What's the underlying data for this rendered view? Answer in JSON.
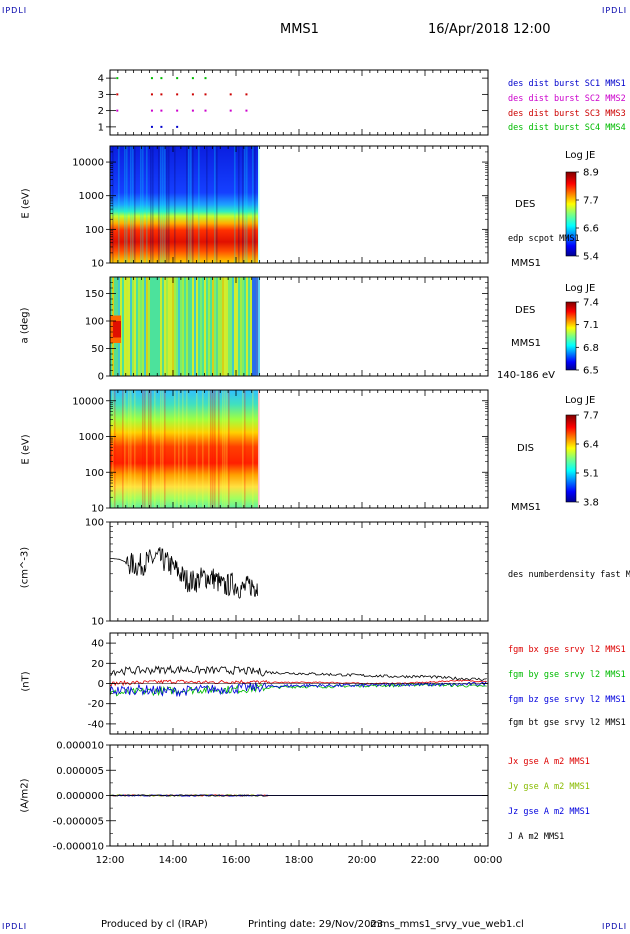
{
  "header": {
    "corner_tl": "IPDLI",
    "corner_tr": "IPDLI",
    "corner_bl": "IPDLI",
    "corner_br": "IPDLI",
    "title": "MMS1",
    "datetime": "16/Apr/2018 12:00"
  },
  "footer": {
    "produced": "Produced by cl (IRAP)",
    "printing": "Printing date: 29/Nov/2023",
    "file": "mms_mms1_srvy_vue_web1.cl"
  },
  "colors": {
    "mms1": "#0000cc",
    "mms2": "#cc00cc",
    "mms3": "#cc0000",
    "mms4": "#00bb00",
    "bx": "#dd0000",
    "by": "#00bb00",
    "bz": "#0000dd",
    "bt": "#000000"
  },
  "x_axis": {
    "ticks": [
      "12:00",
      "14:00",
      "16:00",
      "18:00",
      "20:00",
      "22:00",
      "00:00"
    ],
    "start_hour": 12,
    "end_hour": 24
  },
  "panels": {
    "burst": {
      "yticks": [
        "4",
        "3",
        "2",
        "1"
      ],
      "legend": [
        "des dist burst SC1 MMS1",
        "des dist burst SC2 MMS2",
        "des dist burst SC3 MMS3",
        "des dist burst SC4 MMS4"
      ]
    },
    "des_energy": {
      "ylabel": "E (eV)",
      "yticks": [
        "10000",
        "1000",
        "100",
        "10"
      ],
      "label": "DES",
      "overlay_label": "edp scpot MMS1",
      "sc": "MMS1",
      "cbar_title": "Log JE",
      "cbar_ticks": [
        "8.9",
        "7.7",
        "6.6",
        "5.4"
      ]
    },
    "des_pitch": {
      "ylabel": "a (deg)",
      "yticks": [
        "150",
        "100",
        "50",
        "0"
      ],
      "label": "DES",
      "sc": "MMS1",
      "range": "140-186 eV",
      "cbar_title": "Log JE",
      "cbar_ticks": [
        "7.4",
        "7.1",
        "6.8",
        "6.5"
      ]
    },
    "dis_energy": {
      "ylabel": "E (eV)",
      "yticks": [
        "10000",
        "1000",
        "100",
        "10"
      ],
      "label": "DIS",
      "sc": "MMS1",
      "cbar_title": "Log JE",
      "cbar_ticks": [
        "7.7",
        "6.4",
        "5.1",
        "3.8"
      ]
    },
    "density": {
      "ylabel": "(cm^-3)",
      "yticks": [
        "100",
        "10"
      ],
      "legend": "des numberdensity fast M"
    },
    "bfield": {
      "ylabel": "(nT)",
      "yticks": [
        "40",
        "20",
        "0",
        "-20",
        "-40"
      ],
      "legend": [
        "fgm bx gse srvy l2 MMS1",
        "fgm by gse srvy l2 MMS1",
        "fgm bz gse srvy l2 MMS1",
        "fgm bt gse srvy l2 MMS1"
      ]
    },
    "current": {
      "ylabel": "(A/m2)",
      "yticks": [
        "0.000010",
        "0.000005",
        "0.000000",
        "-0.000005",
        "-0.000010"
      ],
      "legend": [
        "Jx gse A m2 MMS1",
        "Jy gse A m2 MMS1",
        "Jz gse A m2 MMS1",
        "J A m2 MMS1"
      ]
    }
  },
  "chart_data": [
    {
      "type": "scatter",
      "title": "burst intervals",
      "ylim": [
        0.5,
        4.5
      ],
      "series": [
        {
          "name": "des dist burst SC1 MMS1",
          "y": 1,
          "x": [
            13.3,
            13.6,
            14.1
          ]
        },
        {
          "name": "des dist burst SC2 MMS2",
          "y": 2,
          "x": [
            12.2,
            13.3,
            13.6,
            14.1,
            14.6,
            15.0,
            15.8,
            16.3
          ]
        },
        {
          "name": "des dist burst SC3 MMS3",
          "y": 3,
          "x": [
            12.2,
            13.3,
            13.6,
            14.1,
            14.6,
            15.0,
            15.8,
            16.3
          ]
        },
        {
          "name": "des dist burst SC4 MMS4",
          "y": 4,
          "x": [
            12.2,
            13.3,
            13.6,
            14.1,
            14.6,
            15.0
          ]
        }
      ]
    },
    {
      "type": "heatmap",
      "title": "DES",
      "ylabel": "E (eV)",
      "yscale": "log",
      "ylim": [
        10,
        30000
      ],
      "x_range": [
        12.0,
        16.7
      ],
      "colorbar": {
        "title": "Log JE",
        "min": 5.4,
        "max": 8.9
      }
    },
    {
      "type": "heatmap",
      "title": "DES",
      "ylabel": "a (deg)",
      "ylim": [
        0,
        180
      ],
      "x_range": [
        12.0,
        16.7
      ],
      "colorbar": {
        "title": "Log JE",
        "min": 6.5,
        "max": 7.4
      }
    },
    {
      "type": "heatmap",
      "title": "DIS",
      "ylabel": "E (eV)",
      "yscale": "log",
      "ylim": [
        10,
        20000
      ],
      "x_range": [
        12.0,
        16.7
      ],
      "colorbar": {
        "title": "Log JE",
        "min": 3.8,
        "max": 7.7
      }
    },
    {
      "type": "line",
      "ylabel": "(cm^-3)",
      "yscale": "log",
      "ylim": [
        10,
        100
      ],
      "series": [
        {
          "name": "des numberdensity fast M",
          "x": [
            12.0,
            12.3,
            12.6,
            12.9,
            13.2,
            13.5,
            13.8,
            14.1,
            14.4,
            14.7,
            15.0,
            15.3,
            15.6,
            15.9,
            16.2,
            16.5,
            16.7
          ],
          "values": [
            43,
            42,
            38,
            36,
            40,
            44,
            39,
            33,
            26,
            25,
            28,
            27,
            22,
            24,
            21,
            23,
            22
          ]
        }
      ]
    },
    {
      "type": "line",
      "ylabel": "(nT)",
      "ylim": [
        -50,
        50
      ],
      "x": [
        12.0,
        13.0,
        14.0,
        15.0,
        16.0,
        17.0,
        18.0,
        19.0,
        20.0,
        21.0,
        22.0,
        23.0,
        24.0
      ],
      "series": [
        {
          "name": "fgm bx gse srvy l2 MMS1",
          "values": [
            0,
            1,
            2,
            1,
            2,
            1,
            1,
            1,
            0,
            0,
            1,
            3,
            2
          ]
        },
        {
          "name": "fgm by gse srvy l2 MMS1",
          "values": [
            -10,
            -8,
            -7,
            -6,
            -6,
            -4,
            -3,
            -3,
            -2,
            -2,
            -1,
            -2,
            -3
          ]
        },
        {
          "name": "fgm bz gse srvy l2 MMS1",
          "values": [
            -7,
            -6,
            -8,
            -6,
            -5,
            -3,
            -2,
            -2,
            -2,
            -1,
            -1,
            -1,
            0
          ]
        },
        {
          "name": "fgm bt gse srvy l2 MMS1",
          "values": [
            12,
            13,
            14,
            13,
            13,
            11,
            10,
            9,
            8,
            7,
            7,
            5,
            4
          ]
        }
      ]
    },
    {
      "type": "line",
      "ylabel": "(A/m2)",
      "ylim": [
        -1e-05,
        1e-05
      ],
      "x": [
        12.0,
        24.0
      ],
      "series": [
        {
          "name": "Jx gse A m2 MMS1",
          "values": [
            0.0,
            0.0
          ]
        },
        {
          "name": "Jy gse A m2 MMS1",
          "values": [
            0.0,
            0.0
          ]
        },
        {
          "name": "Jz gse A m2 MMS1",
          "values": [
            0.0,
            0.0
          ]
        },
        {
          "name": "J A m2 MMS1",
          "values": [
            0.0,
            0.0
          ]
        }
      ]
    }
  ]
}
